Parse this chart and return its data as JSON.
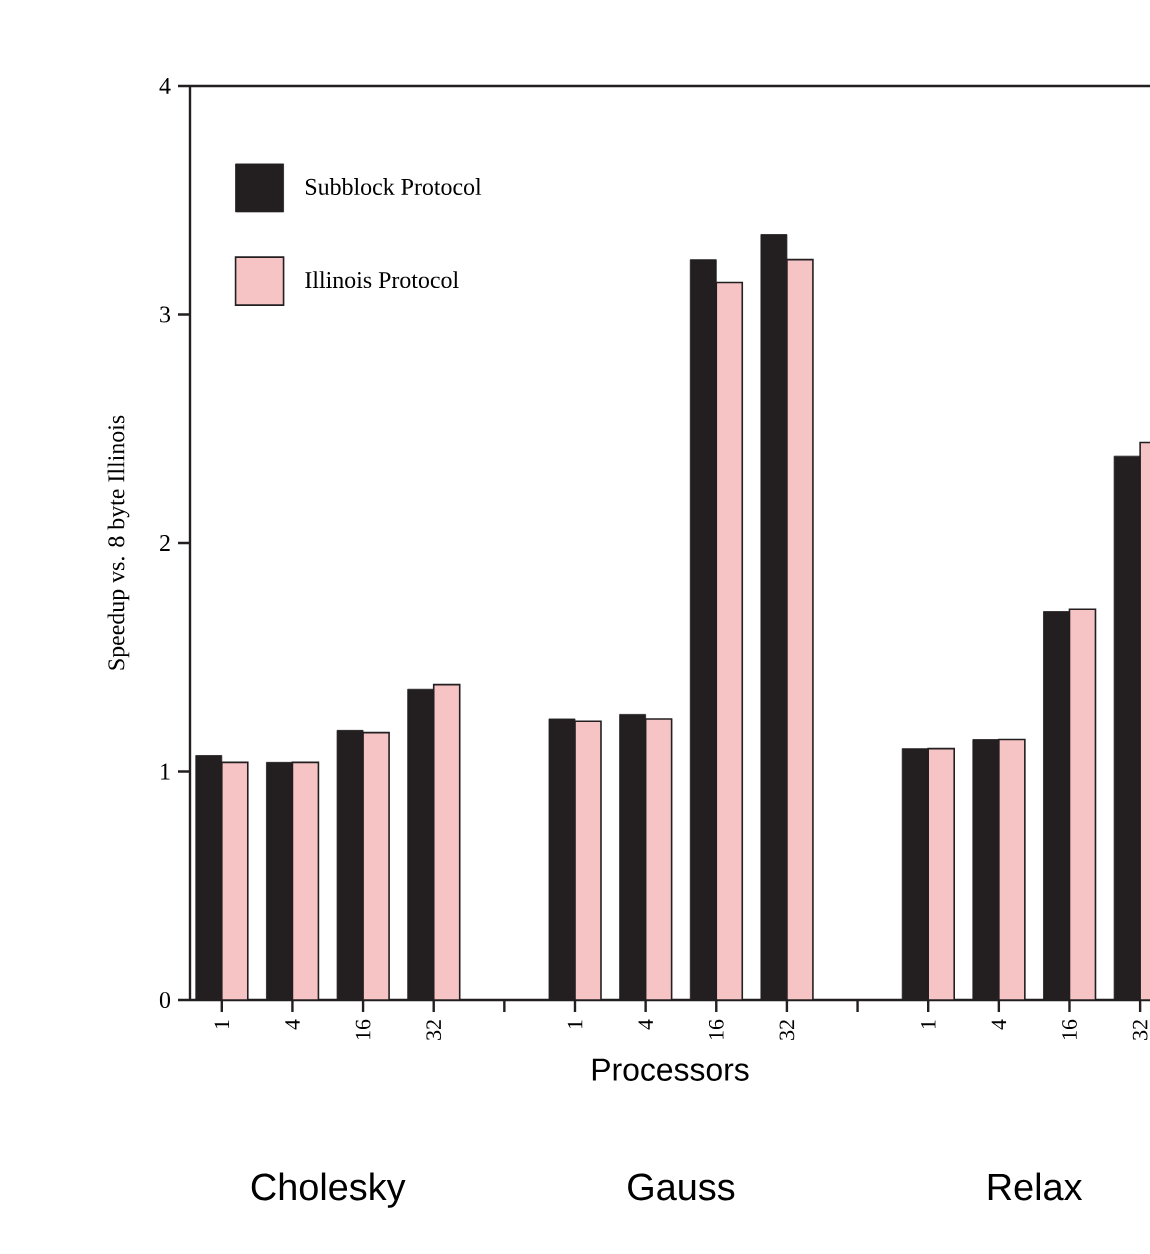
{
  "chart_data": {
    "type": "bar",
    "ylabel": "Speedup vs. 8 byte Illinois",
    "xlabel": "Processors",
    "categories": [
      "1",
      "4",
      "16",
      "32",
      null,
      "1",
      "4",
      "16",
      "32",
      null,
      "1",
      "4",
      "16",
      "32"
    ],
    "series": [
      {
        "name": "Subblock Protocol",
        "color": "#231f20",
        "values": [
          1.07,
          1.04,
          1.18,
          1.36,
          null,
          1.23,
          1.25,
          3.24,
          3.35,
          null,
          1.1,
          1.14,
          1.7,
          2.38
        ]
      },
      {
        "name": "Illinois Protocol",
        "color": "#f6c4c4",
        "values": [
          1.04,
          1.04,
          1.17,
          1.38,
          null,
          1.22,
          1.23,
          3.14,
          3.24,
          null,
          1.1,
          1.14,
          1.71,
          2.44
        ]
      }
    ],
    "ylim": [
      0,
      4
    ],
    "yticks": [
      0,
      1,
      2,
      3,
      4
    ],
    "legend": "top left",
    "annotations": [
      "Cholesky",
      "Gauss",
      "Relax"
    ]
  }
}
